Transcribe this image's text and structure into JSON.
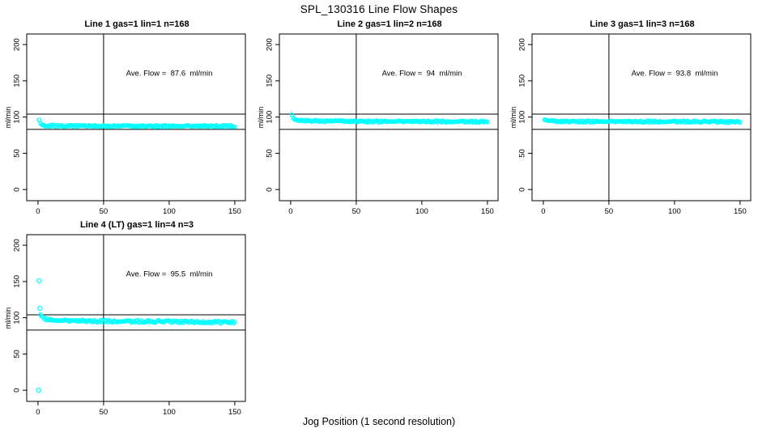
{
  "main_title": "SPL_130316  Line Flow Shapes",
  "x_label": "Jog Position (1 second resolution)",
  "y_axis_label": "ml/min",
  "colors": {
    "points": "#00FFFF",
    "axis": "#000000",
    "background": "#FFFFFF"
  },
  "axes": {
    "x_ticks": [
      0,
      50,
      100,
      150
    ],
    "y_ticks": [
      0,
      50,
      100,
      150,
      200
    ],
    "xlim": [
      -8.6,
      158.1
    ],
    "ylim": [
      -15.4,
      214.6
    ]
  },
  "ref_lines": {
    "horizontal": [
      104,
      83
    ],
    "vertical": 50
  },
  "chart_data": [
    {
      "type": "scatter",
      "title": "Line 1 gas=1 lin=1 n=168",
      "n": 168,
      "ave_flow": 87.6,
      "ave_label": "Ave. Flow =  87.6  ml/min",
      "trace": [
        [
          1,
          96
        ],
        [
          2,
          91
        ],
        [
          3,
          89.5
        ],
        [
          5,
          88.5
        ],
        [
          10,
          88
        ],
        [
          20,
          87.8
        ],
        [
          40,
          87.6
        ],
        [
          70,
          87.5
        ],
        [
          100,
          87.5
        ],
        [
          130,
          87.6
        ],
        [
          150,
          87.5
        ]
      ],
      "outliers": [],
      "jitter": 2.4
    },
    {
      "type": "scatter",
      "title": "Line 2 gas=1 lin=2 n=168",
      "n": 168,
      "ave_flow": 94,
      "ave_label": "Ave. Flow =  94  ml/min",
      "trace": [
        [
          1,
          103
        ],
        [
          2,
          98.5
        ],
        [
          3,
          96.5
        ],
        [
          5,
          95.5
        ],
        [
          10,
          95
        ],
        [
          25,
          94.5
        ],
        [
          60,
          94
        ],
        [
          100,
          94
        ],
        [
          150,
          93.6
        ]
      ],
      "outliers": [],
      "jitter": 2.4
    },
    {
      "type": "scatter",
      "title": "Line 3 gas=1 lin=3 n=168",
      "n": 168,
      "ave_flow": 93.8,
      "ave_label": "Ave. Flow =  93.8  ml/min",
      "trace": [
        [
          1,
          96.5
        ],
        [
          3,
          95
        ],
        [
          6,
          94.3
        ],
        [
          15,
          94
        ],
        [
          50,
          93.8
        ],
        [
          100,
          93.8
        ],
        [
          150,
          93.4
        ]
      ],
      "outliers": [],
      "jitter": 2.4
    },
    {
      "type": "scatter",
      "title": "Line 4 (LT) gas=1 lin=4 n=3",
      "n": 3,
      "ave_flow": 95.5,
      "ave_label": "Ave. Flow =  95.5  ml/min",
      "trace": [
        [
          2,
          104
        ],
        [
          3,
          101.5
        ],
        [
          5,
          99
        ],
        [
          8,
          97.5
        ],
        [
          12,
          96.5
        ],
        [
          20,
          96
        ],
        [
          40,
          95.5
        ],
        [
          70,
          95
        ],
        [
          110,
          94.5
        ],
        [
          150,
          93.5
        ]
      ],
      "outliers": [
        [
          0.5,
          0
        ],
        [
          1,
          151
        ],
        [
          1.5,
          113
        ]
      ],
      "jitter": 3.2
    }
  ]
}
